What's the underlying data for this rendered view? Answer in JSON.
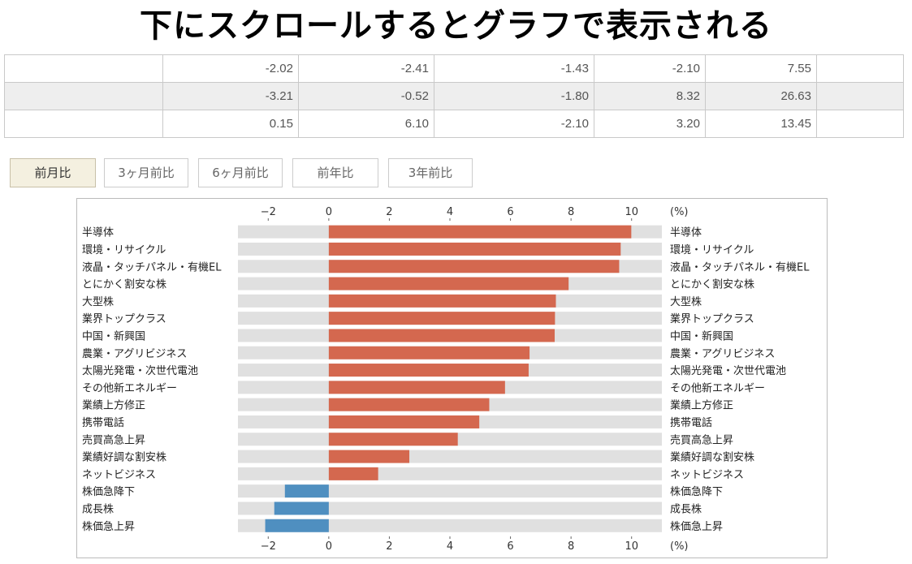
{
  "banner": "下にスクロールするとグラフで表示される",
  "table": {
    "rows": [
      [
        "",
        "-2.02",
        "-2.41",
        "-1.43",
        "-2.10",
        "7.55",
        ""
      ],
      [
        "",
        "-3.21",
        "-0.52",
        "-1.80",
        "8.32",
        "26.63",
        ""
      ],
      [
        "",
        "0.15",
        "6.10",
        "-2.10",
        "3.20",
        "13.45",
        ""
      ]
    ]
  },
  "tabs": [
    {
      "label": "前月比",
      "active": true
    },
    {
      "label": "3ヶ月前比",
      "active": false
    },
    {
      "label": "6ヶ月前比",
      "active": false
    },
    {
      "label": "前年比",
      "active": false
    },
    {
      "label": "3年前比",
      "active": false
    }
  ],
  "chart_data": {
    "type": "bar",
    "orientation": "horizontal",
    "unit_label": "(%)",
    "xlim": [
      -3,
      11
    ],
    "ticks": [
      -2,
      0,
      2,
      4,
      6,
      8,
      10
    ],
    "grid": false,
    "colors": {
      "positive": "#d4684f",
      "negative": "#4f8fc0",
      "track": "#e0e0e0"
    },
    "categories": [
      "半導体",
      "環境・リサイクル",
      "液晶・タッチパネル・有機EL",
      "とにかく割安な株",
      "大型株",
      "業界トップクラス",
      "中国・新興国",
      "農業・アグリビジネス",
      "太陽光発電・次世代電池",
      "その他新エネルギー",
      "業績上方修正",
      "携帯電話",
      "売買高急上昇",
      "業績好調な割安株",
      "ネットビジネス",
      "株価急降下",
      "成長株",
      "株価急上昇"
    ],
    "values": [
      9.99,
      9.64,
      9.59,
      7.92,
      7.5,
      7.47,
      7.46,
      6.63,
      6.6,
      5.82,
      5.3,
      4.97,
      4.26,
      2.66,
      1.63,
      -1.45,
      -1.8,
      -2.1
    ]
  }
}
